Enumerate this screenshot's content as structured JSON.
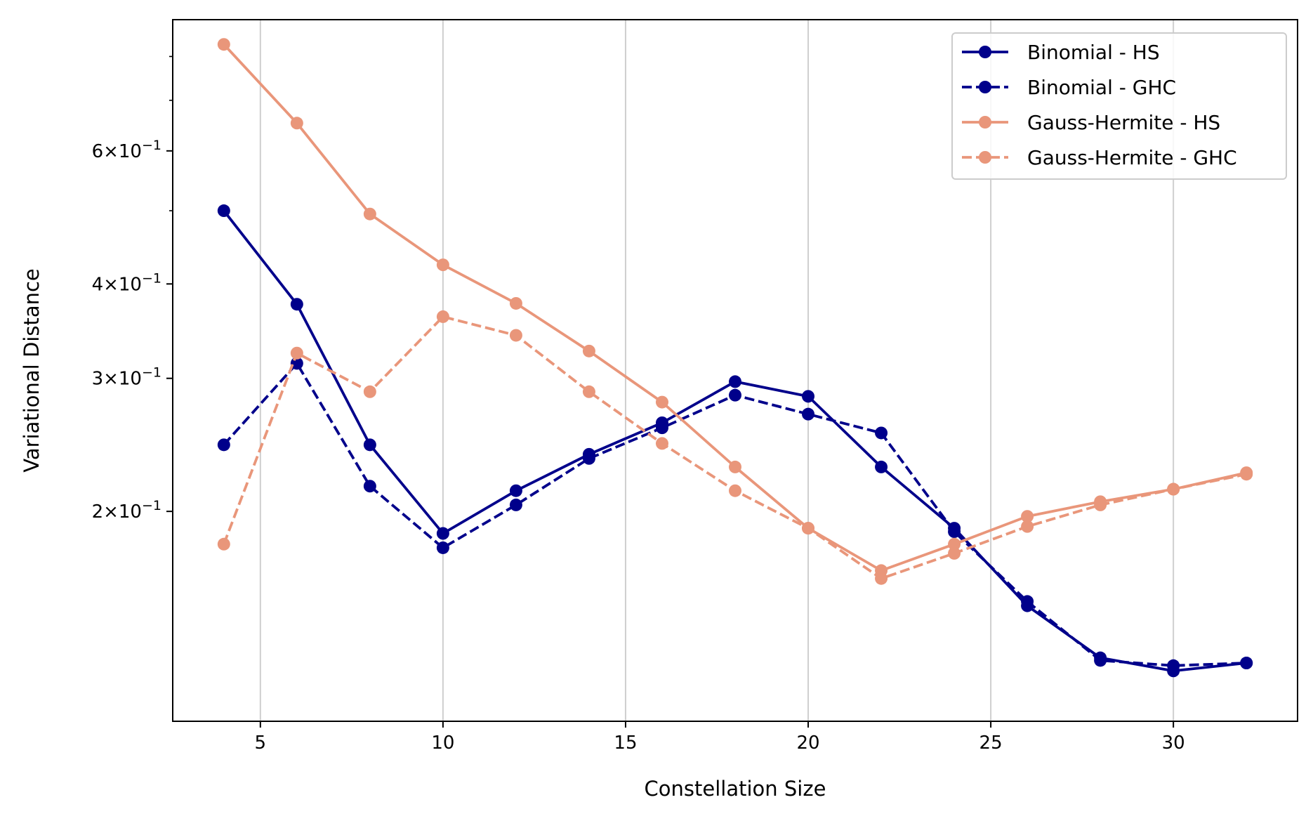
{
  "chart_data": {
    "type": "line",
    "xlabel": "Constellation Size",
    "ylabel": "Variational Distance",
    "xlim": [
      2.6,
      33.4
    ],
    "ylim": [
      0.1055,
      0.895
    ],
    "yscale": "log",
    "grid": "vertical",
    "legend_position": "top-right",
    "x": [
      4,
      6,
      8,
      10,
      12,
      14,
      16,
      18,
      20,
      22,
      24,
      26,
      28,
      30,
      32
    ],
    "xticks": [
      5,
      10,
      15,
      20,
      25,
      30
    ],
    "xtick_labels": [
      "5",
      "10",
      "15",
      "20",
      "25",
      "30"
    ],
    "yticks_major": [
      {
        "value": 0.2,
        "base": "2×10",
        "exp": "−1"
      },
      {
        "value": 0.3,
        "base": "3×10",
        "exp": "−1"
      },
      {
        "value": 0.4,
        "base": "4×10",
        "exp": "−1"
      },
      {
        "value": 0.6,
        "base": "6×10",
        "exp": "−1"
      }
    ],
    "yticks_minor": [
      0.5,
      0.7,
      0.8
    ],
    "series": [
      {
        "name": "Binomial - HS",
        "color": "#00008b",
        "dash": "solid",
        "values": [
          0.5,
          0.376,
          0.245,
          0.187,
          0.213,
          0.238,
          0.262,
          0.297,
          0.284,
          0.229,
          0.19,
          0.15,
          0.128,
          0.123,
          0.126
        ]
      },
      {
        "name": "Binomial - GHC",
        "color": "#00008b",
        "dash": "dashed",
        "values": [
          0.245,
          0.314,
          0.216,
          0.179,
          0.204,
          0.235,
          0.258,
          0.285,
          0.269,
          0.254,
          0.188,
          0.152,
          0.127,
          0.125,
          0.126
        ]
      },
      {
        "name": "Gauss-Hermite - HS",
        "color": "#e9967a",
        "dash": "solid",
        "values": [
          0.83,
          0.653,
          0.495,
          0.424,
          0.377,
          0.326,
          0.279,
          0.229,
          0.19,
          0.167,
          0.181,
          0.197,
          0.206,
          0.214,
          0.225
        ]
      },
      {
        "name": "Gauss-Hermite - GHC",
        "color": "#e9967a",
        "dash": "dashed",
        "values": [
          0.181,
          0.324,
          0.288,
          0.362,
          0.342,
          0.288,
          0.246,
          0.213,
          0.19,
          0.163,
          0.176,
          0.191,
          0.204,
          0.214,
          0.224
        ]
      }
    ]
  }
}
